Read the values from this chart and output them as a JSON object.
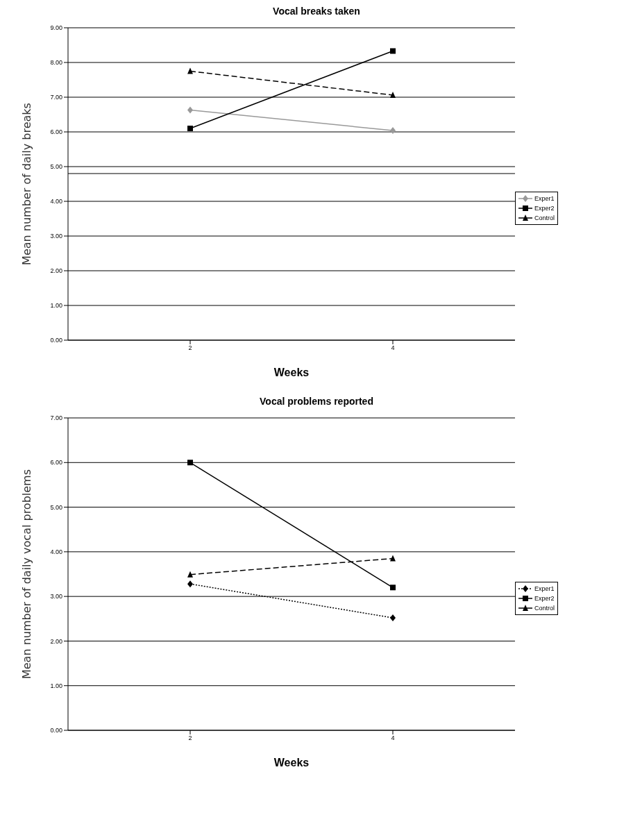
{
  "chart_data": [
    {
      "type": "line",
      "title": "Vocal breaks taken",
      "xlabel": "Weeks",
      "ylabel": "Mean number of daily breaks",
      "categories": [
        "2",
        "4"
      ],
      "series": [
        {
          "name": "Exper1",
          "color": "#999999",
          "values": [
            6.63,
            6.04
          ],
          "marker": "diamond",
          "line_style": "solid"
        },
        {
          "name": "Exper2",
          "color": "#000000",
          "values": [
            6.1,
            8.33
          ],
          "marker": "square",
          "line_style": "solid"
        },
        {
          "name": "Control",
          "color": "#000000",
          "values": [
            7.75,
            7.06
          ],
          "marker": "triangle",
          "line_style": "dashed"
        }
      ],
      "ylim": [
        0,
        9
      ],
      "yticks": [
        {
          "value": 0,
          "label": "0.00"
        },
        {
          "value": 1,
          "label": "1.00"
        },
        {
          "value": 2,
          "label": "2.00"
        },
        {
          "value": 3,
          "label": "3.00"
        },
        {
          "value": 4,
          "label": "4.00"
        },
        {
          "value": 5,
          "label": "5.00"
        },
        {
          "value": 6,
          "label": "6.00"
        },
        {
          "value": 7,
          "label": "7.00"
        },
        {
          "value": 8,
          "label": "8.00"
        },
        {
          "value": 9,
          "label": "9.00"
        }
      ],
      "ref_lines": [
        {
          "axis": "y",
          "value": 4.8,
          "label": null,
          "color": "#000000"
        }
      ],
      "grid": "y",
      "legend": "right"
    },
    {
      "type": "line",
      "title": "Vocal problems reported",
      "xlabel": "Weeks",
      "ylabel": "Mean number of daily vocal problems",
      "categories": [
        "2",
        "4"
      ],
      "series": [
        {
          "name": "Exper1",
          "color": "#000000",
          "values": [
            3.28,
            2.52
          ],
          "marker": "diamond",
          "line_style": "dotted"
        },
        {
          "name": "Exper2",
          "color": "#000000",
          "values": [
            6.0,
            3.2
          ],
          "marker": "square",
          "line_style": "solid"
        },
        {
          "name": "Control",
          "color": "#000000",
          "values": [
            3.49,
            3.85
          ],
          "marker": "triangle",
          "line_style": "dashed"
        }
      ],
      "ylim": [
        0,
        7
      ],
      "yticks": [
        {
          "value": 0,
          "label": "0.00"
        },
        {
          "value": 1,
          "label": "1.00"
        },
        {
          "value": 2,
          "label": "2.00"
        },
        {
          "value": 3,
          "label": "3.00"
        },
        {
          "value": 4,
          "label": "4.00"
        },
        {
          "value": 5,
          "label": "5.00"
        },
        {
          "value": 6,
          "label": "6.00"
        },
        {
          "value": 7,
          "label": "7.00"
        }
      ],
      "grid": "y",
      "legend": "right"
    }
  ]
}
